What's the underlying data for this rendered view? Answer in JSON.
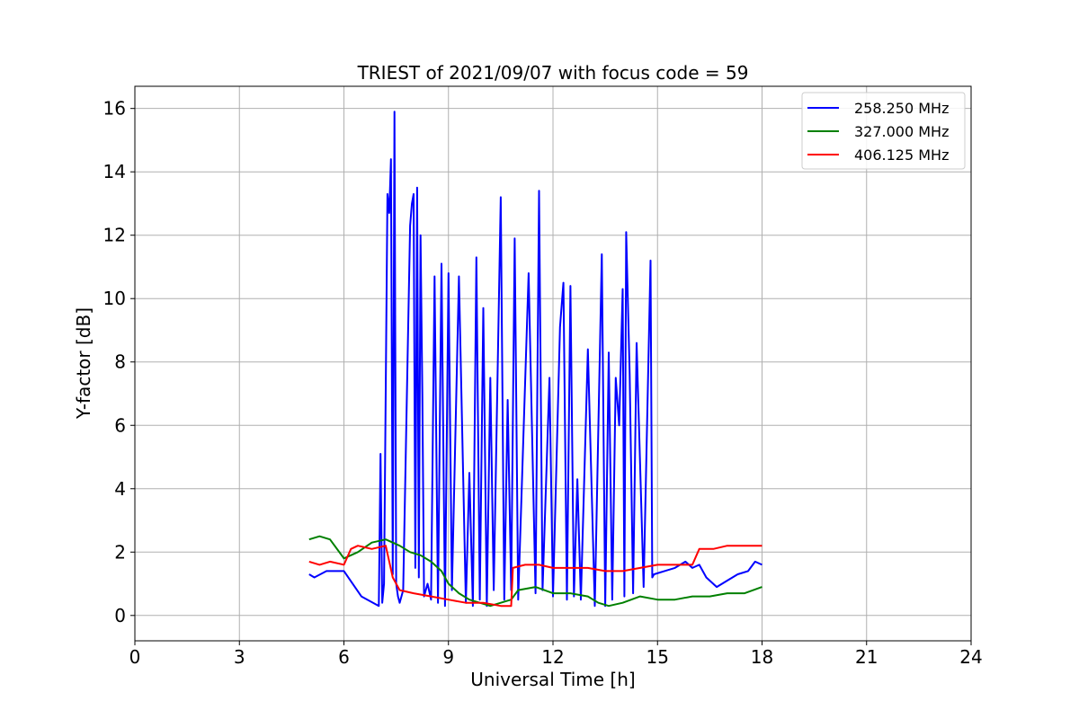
{
  "chart_data": {
    "type": "line",
    "title": "TRIEST of 2021/09/07 with focus code = 59",
    "xlabel": "Universal Time [h]",
    "ylabel": "Y-factor [dB]",
    "xlim": [
      0,
      24
    ],
    "ylim": [
      -0.8,
      16.7
    ],
    "xticks": [
      0,
      3,
      6,
      9,
      12,
      15,
      18,
      21,
      24
    ],
    "yticks": [
      0,
      2,
      4,
      6,
      8,
      10,
      12,
      14,
      16
    ],
    "grid": true,
    "legend_position": "top-right",
    "series": [
      {
        "name": "258.250 MHz",
        "color": "#0000ff",
        "x": [
          5.0,
          5.15,
          5.5,
          6.0,
          6.5,
          7.0,
          7.05,
          7.1,
          7.15,
          7.25,
          7.3,
          7.35,
          7.4,
          7.45,
          7.5,
          7.55,
          7.6,
          7.7,
          7.9,
          7.95,
          8.0,
          8.05,
          8.1,
          8.15,
          8.2,
          8.25,
          8.3,
          8.4,
          8.5,
          8.6,
          8.7,
          8.8,
          8.9,
          9.0,
          9.1,
          9.3,
          9.5,
          9.6,
          9.7,
          9.8,
          9.9,
          10.0,
          10.1,
          10.2,
          10.3,
          10.5,
          10.6,
          10.7,
          10.8,
          10.9,
          11.0,
          11.3,
          11.5,
          11.6,
          11.7,
          11.9,
          12.0,
          12.2,
          12.3,
          12.4,
          12.5,
          12.6,
          12.7,
          12.8,
          13.0,
          13.2,
          13.4,
          13.5,
          13.6,
          13.7,
          13.8,
          13.9,
          14.0,
          14.05,
          14.1,
          14.2,
          14.3,
          14.4,
          14.6,
          14.8,
          14.85,
          14.9,
          15.2,
          15.5,
          15.8,
          16.0,
          16.2,
          16.4,
          16.7,
          17.0,
          17.3,
          17.6,
          17.8,
          18.0
        ],
        "y": [
          1.3,
          1.2,
          1.4,
          1.4,
          0.6,
          0.3,
          5.1,
          0.4,
          1.0,
          13.3,
          12.7,
          14.4,
          1.3,
          15.9,
          1.0,
          0.6,
          0.4,
          0.8,
          12.3,
          13.0,
          13.3,
          1.5,
          13.5,
          1.2,
          12.0,
          7.0,
          0.6,
          1.0,
          0.5,
          10.7,
          0.4,
          11.1,
          0.3,
          10.8,
          0.8,
          10.7,
          0.4,
          4.5,
          0.3,
          11.3,
          0.5,
          9.7,
          0.3,
          7.5,
          0.8,
          13.2,
          0.5,
          6.8,
          0.8,
          11.9,
          0.5,
          10.8,
          0.7,
          13.4,
          0.8,
          7.5,
          0.6,
          9.1,
          10.5,
          0.5,
          10.4,
          0.6,
          4.3,
          0.5,
          8.4,
          0.3,
          11.4,
          0.3,
          8.3,
          0.5,
          7.5,
          6.0,
          10.3,
          0.6,
          12.1,
          7.6,
          0.7,
          8.6,
          0.9,
          11.2,
          1.2,
          1.3,
          1.4,
          1.5,
          1.7,
          1.5,
          1.6,
          1.2,
          0.9,
          1.1,
          1.3,
          1.4,
          1.7,
          1.6
        ]
      },
      {
        "name": "327.000 MHz",
        "color": "#008000",
        "x": [
          5.0,
          5.3,
          5.6,
          6.0,
          6.4,
          6.8,
          7.2,
          7.6,
          7.9,
          8.2,
          8.5,
          8.8,
          9.0,
          9.3,
          9.6,
          9.9,
          10.2,
          10.5,
          10.8,
          11.0,
          11.5,
          12.0,
          12.5,
          13.0,
          13.3,
          13.6,
          14.0,
          14.5,
          15.0,
          15.5,
          16.0,
          16.5,
          17.0,
          17.5,
          18.0
        ],
        "y": [
          2.4,
          2.5,
          2.4,
          1.8,
          2.0,
          2.3,
          2.4,
          2.2,
          2.0,
          1.9,
          1.7,
          1.4,
          1.0,
          0.7,
          0.5,
          0.4,
          0.3,
          0.4,
          0.5,
          0.8,
          0.9,
          0.7,
          0.7,
          0.6,
          0.4,
          0.3,
          0.4,
          0.6,
          0.5,
          0.5,
          0.6,
          0.6,
          0.7,
          0.7,
          0.9
        ]
      },
      {
        "name": "406.125 MHz",
        "color": "#ff0000",
        "x": [
          5.0,
          5.3,
          5.6,
          6.0,
          6.2,
          6.4,
          6.8,
          7.2,
          7.4,
          7.6,
          8.0,
          8.5,
          9.0,
          9.5,
          10.0,
          10.5,
          10.8,
          10.85,
          11.2,
          11.6,
          12.0,
          12.5,
          13.0,
          13.5,
          14.0,
          14.5,
          15.0,
          15.5,
          16.0,
          16.2,
          16.6,
          17.0,
          17.5,
          18.0
        ],
        "y": [
          1.7,
          1.6,
          1.7,
          1.6,
          2.1,
          2.2,
          2.1,
          2.2,
          1.2,
          0.8,
          0.7,
          0.6,
          0.5,
          0.4,
          0.4,
          0.3,
          0.3,
          1.5,
          1.6,
          1.6,
          1.5,
          1.5,
          1.5,
          1.4,
          1.4,
          1.5,
          1.6,
          1.6,
          1.6,
          2.1,
          2.1,
          2.2,
          2.2,
          2.2
        ]
      }
    ]
  }
}
